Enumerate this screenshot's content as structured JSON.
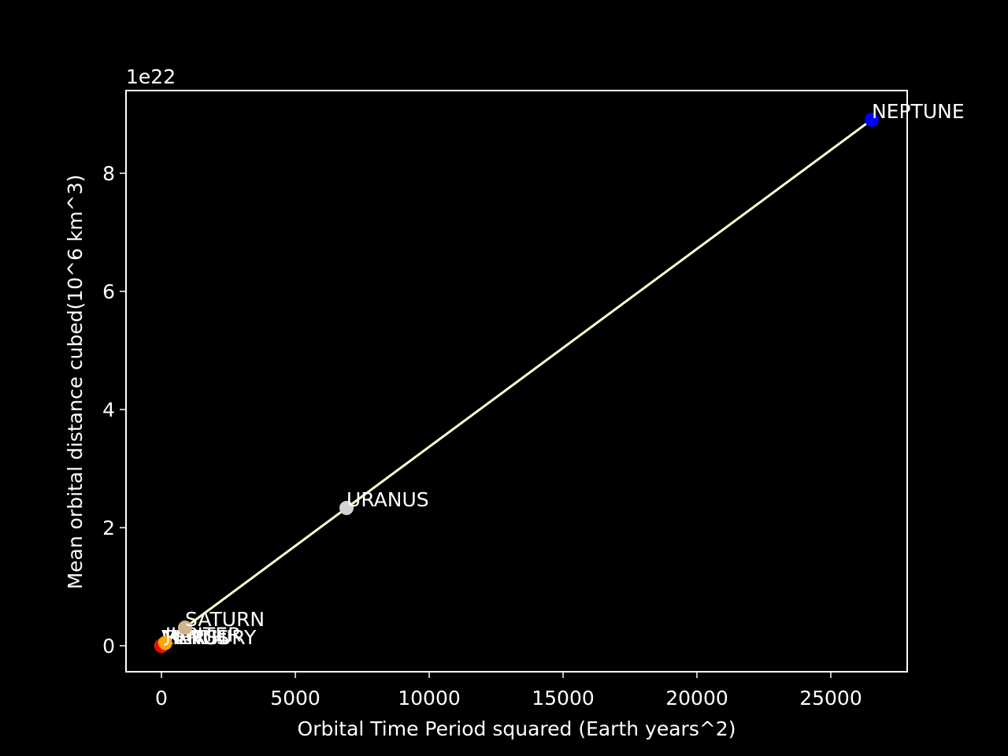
{
  "chart_data": {
    "type": "scatter",
    "x_label": "Orbital Time Period squared (Earth years^2)",
    "y_label": "Mean orbital distance cubed(10^6 km^3)",
    "y_offset_label": "1e22",
    "categories": [
      "MERCURY",
      "VENUS",
      "EARTH",
      "MARS",
      "JUPITER",
      "SATURN",
      "URANUS",
      "NEPTUNE"
    ],
    "x": [
      0.058,
      0.378,
      1,
      3.54,
      140.7,
      882,
      6912,
      26529
    ],
    "values": [
      2.26e+17,
      1.07e+18,
      3.35e+18,
      1.18e+19,
      4.72e+20,
      3.07e+21,
      2.333e+22,
      8.907e+22
    ],
    "colors": [
      "#a9a9a9",
      "#ffd700",
      "#2e8b57",
      "#ff0000",
      "#ffa500",
      "#d2b48c",
      "#d3d3d3",
      "#0000ff"
    ],
    "line_color": "#ffffcc",
    "xlim": [
      -1324,
      27853
    ],
    "ylim": [
      -4.4e+21,
      9.4e+22
    ],
    "xticks": [
      0,
      5000,
      10000,
      15000,
      20000,
      25000
    ],
    "yticks": [
      {
        "value": 0,
        "label": "0"
      },
      {
        "value": 2e+22,
        "label": "2"
      },
      {
        "value": 4e+22,
        "label": "4"
      },
      {
        "value": 6e+22,
        "label": "6"
      },
      {
        "value": 8e+22,
        "label": "8"
      }
    ]
  }
}
